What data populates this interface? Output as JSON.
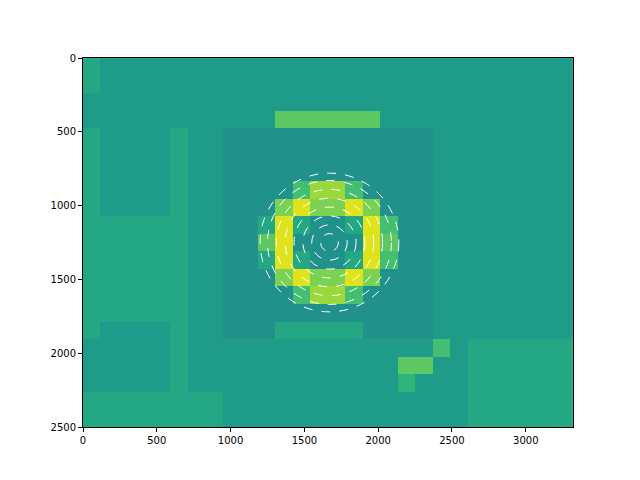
{
  "chart_data": {
    "type": "heatmap",
    "color": "viridis",
    "zlim": [
      0,
      1
    ],
    "xlim": [
      0,
      3320
    ],
    "ylim": [
      2500,
      0
    ],
    "xticks": [
      0,
      500,
      1000,
      1500,
      2000,
      2500,
      3000
    ],
    "yticks": [
      0,
      500,
      1000,
      1500,
      2000,
      2500
    ],
    "x": [
      59,
      178,
      296,
      415,
      534,
      652,
      771,
      889,
      1008,
      1127,
      1245,
      1364,
      1482,
      1601,
      1720,
      1838,
      1957,
      2075,
      2194,
      2312,
      2431,
      2549,
      2668,
      2786,
      2905,
      3024,
      3142,
      3261
    ],
    "y": [
      60,
      179,
      298,
      417,
      536,
      655,
      774,
      893,
      1012,
      1131,
      1250,
      1369,
      1488,
      1607,
      1726,
      1845,
      1964,
      2083,
      2202,
      2321,
      2440
    ],
    "cells": [
      [
        0.6,
        0.55,
        0.55,
        0.55,
        0.55,
        0.55,
        0.55,
        0.55,
        0.55,
        0.55,
        0.55,
        0.55,
        0.55,
        0.55,
        0.55,
        0.55,
        0.55,
        0.55,
        0.55,
        0.55,
        0.55,
        0.55,
        0.55,
        0.55,
        0.55,
        0.55,
        0.55,
        0.55
      ],
      [
        0.6,
        0.55,
        0.55,
        0.55,
        0.55,
        0.55,
        0.55,
        0.55,
        0.55,
        0.55,
        0.55,
        0.55,
        0.55,
        0.55,
        0.55,
        0.55,
        0.55,
        0.55,
        0.55,
        0.55,
        0.55,
        0.55,
        0.55,
        0.55,
        0.55,
        0.55,
        0.55,
        0.55
      ],
      [
        0.55,
        0.55,
        0.55,
        0.55,
        0.55,
        0.55,
        0.55,
        0.55,
        0.55,
        0.55,
        0.55,
        0.55,
        0.55,
        0.55,
        0.55,
        0.55,
        0.55,
        0.55,
        0.55,
        0.55,
        0.55,
        0.55,
        0.55,
        0.55,
        0.55,
        0.55,
        0.55,
        0.55
      ],
      [
        0.55,
        0.55,
        0.55,
        0.55,
        0.55,
        0.55,
        0.55,
        0.55,
        0.55,
        0.55,
        0.55,
        0.75,
        0.75,
        0.75,
        0.75,
        0.75,
        0.75,
        0.55,
        0.55,
        0.55,
        0.55,
        0.55,
        0.55,
        0.55,
        0.55,
        0.55,
        0.55,
        0.55
      ],
      [
        0.6,
        0.55,
        0.55,
        0.55,
        0.55,
        0.6,
        0.55,
        0.55,
        0.5,
        0.5,
        0.5,
        0.5,
        0.5,
        0.5,
        0.5,
        0.5,
        0.5,
        0.5,
        0.5,
        0.5,
        0.55,
        0.55,
        0.55,
        0.55,
        0.55,
        0.55,
        0.55,
        0.55
      ],
      [
        0.6,
        0.55,
        0.55,
        0.55,
        0.55,
        0.6,
        0.55,
        0.55,
        0.5,
        0.5,
        0.5,
        0.5,
        0.5,
        0.5,
        0.5,
        0.5,
        0.5,
        0.5,
        0.5,
        0.5,
        0.55,
        0.55,
        0.55,
        0.55,
        0.55,
        0.55,
        0.55,
        0.55
      ],
      [
        0.6,
        0.55,
        0.55,
        0.55,
        0.55,
        0.6,
        0.55,
        0.55,
        0.5,
        0.5,
        0.5,
        0.5,
        0.5,
        0.5,
        0.5,
        0.5,
        0.5,
        0.5,
        0.5,
        0.5,
        0.55,
        0.55,
        0.55,
        0.55,
        0.55,
        0.55,
        0.55,
        0.55
      ],
      [
        0.6,
        0.55,
        0.55,
        0.55,
        0.55,
        0.6,
        0.55,
        0.55,
        0.5,
        0.5,
        0.5,
        0.5,
        0.7,
        0.85,
        0.85,
        0.7,
        0.5,
        0.5,
        0.5,
        0.5,
        0.55,
        0.55,
        0.55,
        0.55,
        0.55,
        0.55,
        0.55,
        0.55
      ],
      [
        0.6,
        0.55,
        0.55,
        0.55,
        0.55,
        0.6,
        0.55,
        0.55,
        0.5,
        0.5,
        0.5,
        0.8,
        0.95,
        0.8,
        0.8,
        0.95,
        0.8,
        0.5,
        0.5,
        0.5,
        0.55,
        0.55,
        0.55,
        0.55,
        0.55,
        0.55,
        0.55,
        0.55
      ],
      [
        0.6,
        0.6,
        0.6,
        0.6,
        0.6,
        0.6,
        0.55,
        0.55,
        0.5,
        0.5,
        0.6,
        0.95,
        0.6,
        0.5,
        0.5,
        0.6,
        0.95,
        0.7,
        0.5,
        0.5,
        0.55,
        0.55,
        0.55,
        0.55,
        0.55,
        0.55,
        0.55,
        0.55
      ],
      [
        0.6,
        0.6,
        0.6,
        0.6,
        0.6,
        0.6,
        0.55,
        0.55,
        0.5,
        0.5,
        0.75,
        0.95,
        0.5,
        0.5,
        0.5,
        0.5,
        0.95,
        0.75,
        0.5,
        0.5,
        0.55,
        0.55,
        0.55,
        0.55,
        0.55,
        0.55,
        0.55,
        0.55
      ],
      [
        0.6,
        0.6,
        0.6,
        0.6,
        0.6,
        0.6,
        0.55,
        0.55,
        0.5,
        0.5,
        0.6,
        0.95,
        0.6,
        0.5,
        0.5,
        0.6,
        0.95,
        0.7,
        0.5,
        0.5,
        0.55,
        0.55,
        0.55,
        0.55,
        0.55,
        0.55,
        0.55,
        0.55
      ],
      [
        0.6,
        0.6,
        0.6,
        0.6,
        0.6,
        0.6,
        0.55,
        0.55,
        0.5,
        0.5,
        0.5,
        0.8,
        0.95,
        0.8,
        0.8,
        0.95,
        0.8,
        0.5,
        0.5,
        0.5,
        0.55,
        0.55,
        0.55,
        0.55,
        0.55,
        0.55,
        0.55,
        0.55
      ],
      [
        0.6,
        0.6,
        0.6,
        0.6,
        0.6,
        0.6,
        0.55,
        0.55,
        0.5,
        0.5,
        0.5,
        0.5,
        0.7,
        0.85,
        0.85,
        0.7,
        0.5,
        0.5,
        0.5,
        0.5,
        0.55,
        0.55,
        0.55,
        0.55,
        0.55,
        0.55,
        0.55,
        0.55
      ],
      [
        0.6,
        0.6,
        0.6,
        0.6,
        0.6,
        0.6,
        0.55,
        0.55,
        0.5,
        0.5,
        0.5,
        0.5,
        0.5,
        0.5,
        0.5,
        0.5,
        0.5,
        0.5,
        0.5,
        0.5,
        0.55,
        0.55,
        0.55,
        0.55,
        0.55,
        0.55,
        0.55,
        0.55
      ],
      [
        0.6,
        0.55,
        0.55,
        0.55,
        0.55,
        0.6,
        0.55,
        0.55,
        0.5,
        0.5,
        0.5,
        0.6,
        0.6,
        0.6,
        0.6,
        0.6,
        0.5,
        0.5,
        0.5,
        0.5,
        0.55,
        0.55,
        0.55,
        0.55,
        0.55,
        0.55,
        0.55,
        0.55
      ],
      [
        0.55,
        0.55,
        0.55,
        0.55,
        0.55,
        0.6,
        0.55,
        0.55,
        0.55,
        0.55,
        0.55,
        0.55,
        0.55,
        0.55,
        0.55,
        0.55,
        0.55,
        0.55,
        0.55,
        0.55,
        0.7,
        0.55,
        0.6,
        0.6,
        0.6,
        0.6,
        0.6,
        0.6
      ],
      [
        0.55,
        0.55,
        0.55,
        0.55,
        0.55,
        0.6,
        0.55,
        0.55,
        0.55,
        0.55,
        0.55,
        0.55,
        0.55,
        0.55,
        0.55,
        0.55,
        0.55,
        0.55,
        0.75,
        0.75,
        0.55,
        0.55,
        0.6,
        0.6,
        0.6,
        0.6,
        0.6,
        0.6
      ],
      [
        0.55,
        0.55,
        0.55,
        0.55,
        0.55,
        0.6,
        0.55,
        0.55,
        0.55,
        0.55,
        0.55,
        0.55,
        0.55,
        0.55,
        0.55,
        0.55,
        0.55,
        0.55,
        0.65,
        0.55,
        0.55,
        0.55,
        0.6,
        0.6,
        0.6,
        0.6,
        0.6,
        0.6
      ],
      [
        0.6,
        0.6,
        0.6,
        0.6,
        0.6,
        0.6,
        0.6,
        0.6,
        0.55,
        0.55,
        0.55,
        0.55,
        0.55,
        0.55,
        0.55,
        0.55,
        0.55,
        0.55,
        0.55,
        0.55,
        0.55,
        0.55,
        0.6,
        0.6,
        0.6,
        0.6,
        0.6,
        0.6
      ],
      [
        0.6,
        0.6,
        0.6,
        0.6,
        0.6,
        0.6,
        0.6,
        0.6,
        0.55,
        0.55,
        0.55,
        0.55,
        0.55,
        0.55,
        0.55,
        0.55,
        0.55,
        0.55,
        0.55,
        0.55,
        0.55,
        0.55,
        0.6,
        0.6,
        0.6,
        0.6,
        0.6,
        0.6
      ]
    ],
    "circles": {
      "center": [
        1670,
        1250
      ],
      "radii": [
        60,
        120,
        180,
        240,
        300,
        360,
        420,
        470
      ],
      "color": "white",
      "line_style": "dashed"
    }
  }
}
